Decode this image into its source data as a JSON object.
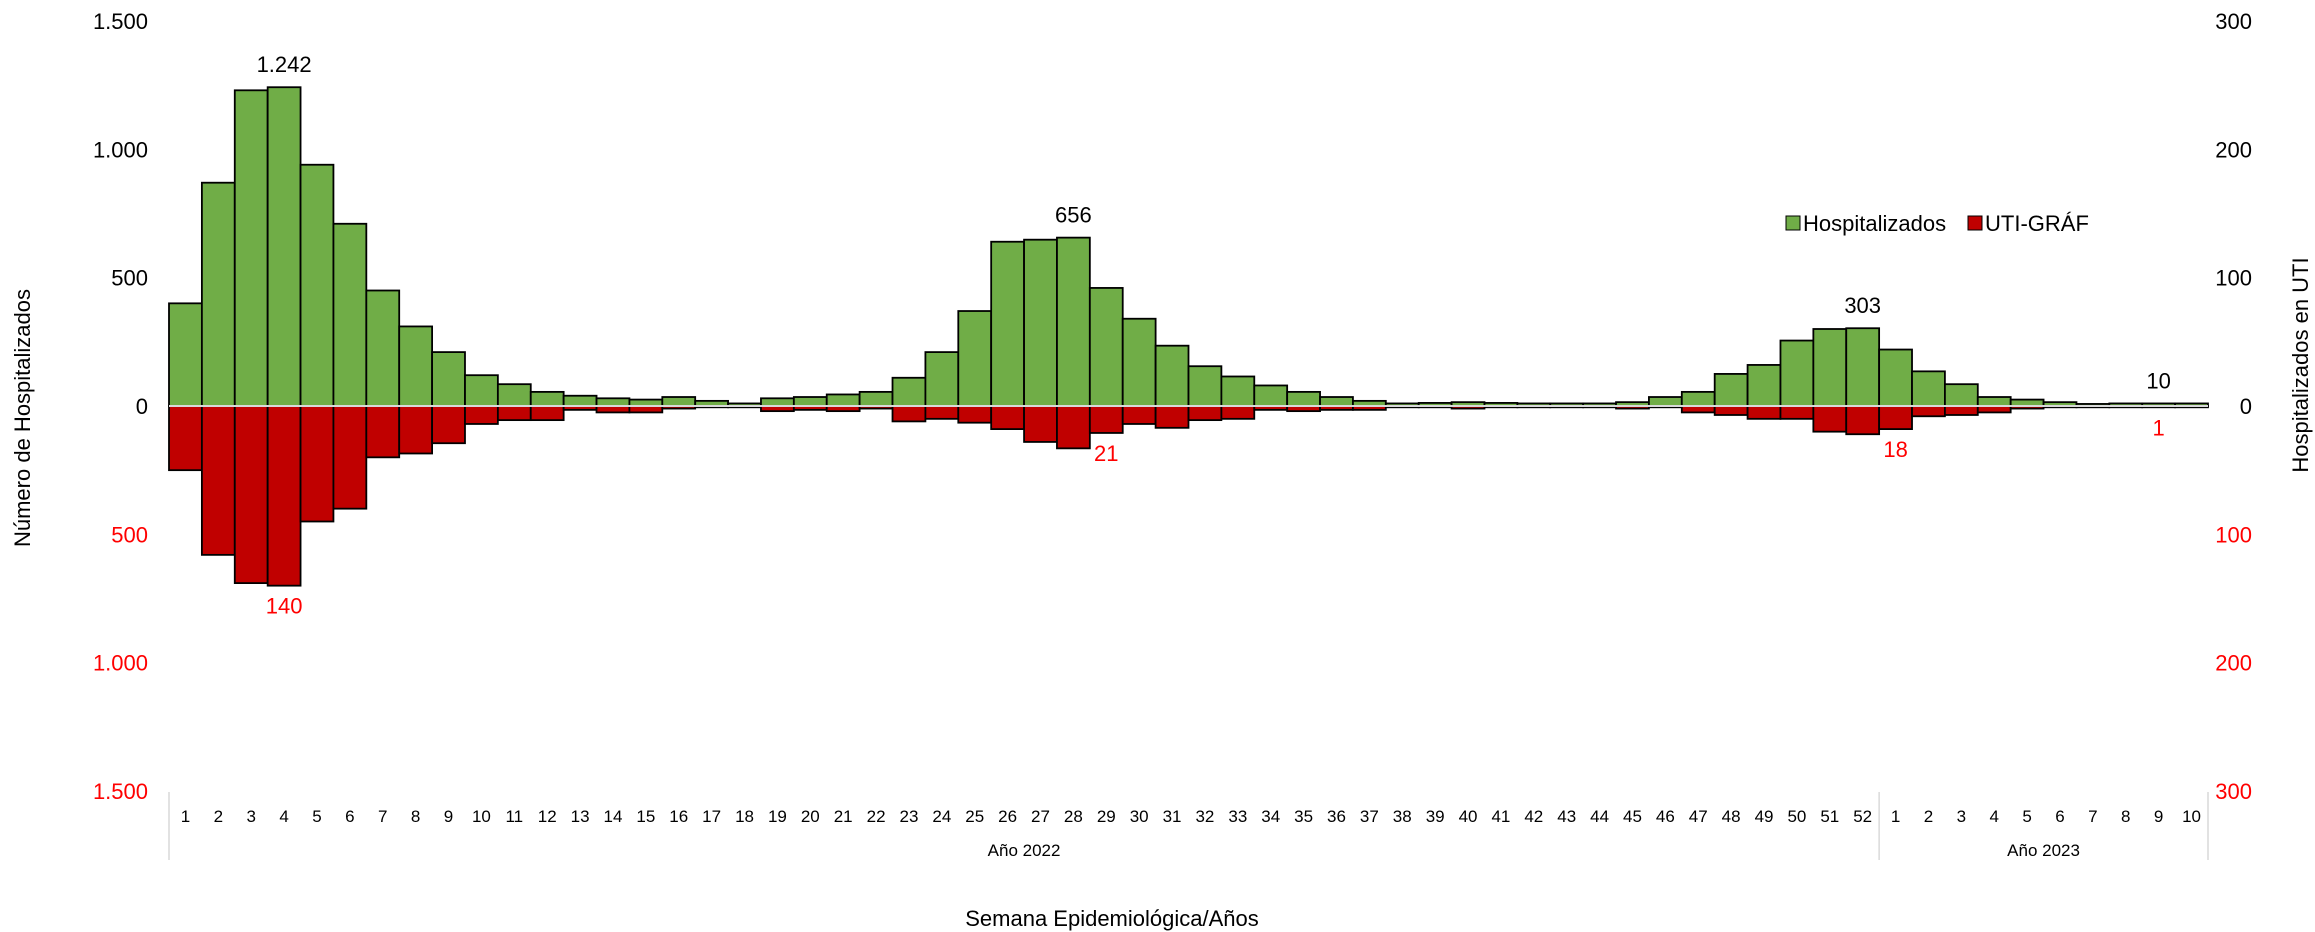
{
  "chart_data": {
    "type": "bar",
    "xlabel": "Semana Epidemiológica/Años",
    "ylabel_left": "Número de Hospitalizados",
    "ylabel_right": "Hospitalizados en UTI",
    "left_axis": {
      "ylim": [
        -1500,
        1500
      ],
      "ticks": [
        {
          "value": 1500,
          "label": "1.500"
        },
        {
          "value": 1000,
          "label": "1.000"
        },
        {
          "value": 500,
          "label": "500"
        },
        {
          "value": 0,
          "label": "0"
        },
        {
          "value": -500,
          "label": "500"
        },
        {
          "value": -1000,
          "label": "1.000"
        },
        {
          "value": -1500,
          "label": "1.500"
        }
      ]
    },
    "right_axis": {
      "ylim": [
        -300,
        300
      ],
      "ticks": [
        {
          "value": 300,
          "label": "300"
        },
        {
          "value": 200,
          "label": "200"
        },
        {
          "value": 100,
          "label": "100"
        },
        {
          "value": 0,
          "label": "0"
        },
        {
          "value": -100,
          "label": "100"
        },
        {
          "value": -200,
          "label": "200"
        },
        {
          "value": -300,
          "label": "300"
        }
      ]
    },
    "categories": [
      "1",
      "2",
      "3",
      "4",
      "5",
      "6",
      "7",
      "8",
      "9",
      "10",
      "11",
      "12",
      "13",
      "14",
      "15",
      "16",
      "17",
      "18",
      "19",
      "20",
      "21",
      "22",
      "23",
      "24",
      "25",
      "26",
      "27",
      "28",
      "29",
      "30",
      "31",
      "32",
      "33",
      "34",
      "35",
      "36",
      "37",
      "38",
      "39",
      "40",
      "41",
      "42",
      "43",
      "44",
      "45",
      "46",
      "47",
      "48",
      "49",
      "50",
      "51",
      "52",
      "1",
      "2",
      "3",
      "4",
      "5",
      "6",
      "7",
      "8",
      "9",
      "10"
    ],
    "groups": [
      {
        "label": "Año 2022",
        "count": 52
      },
      {
        "label": "Año 2023",
        "count": 10
      }
    ],
    "series": [
      {
        "name": "Hospitalizados",
        "color": "#70ad47",
        "axis": "left",
        "values": [
          400,
          870,
          1230,
          1242,
          940,
          710,
          450,
          310,
          210,
          120,
          85,
          55,
          40,
          30,
          25,
          35,
          20,
          10,
          30,
          35,
          45,
          55,
          110,
          210,
          370,
          640,
          648,
          656,
          460,
          340,
          235,
          155,
          115,
          80,
          55,
          35,
          20,
          10,
          12,
          15,
          12,
          10,
          10,
          10,
          15,
          35,
          55,
          125,
          160,
          255,
          300,
          303,
          220,
          135,
          85,
          35,
          25,
          15,
          8,
          10,
          10,
          10
        ],
        "value_labels": [
          {
            "index": 3,
            "label": "1.242"
          },
          {
            "index": 27,
            "label": "656"
          },
          {
            "index": 51,
            "label": "303"
          },
          {
            "index": 60,
            "label": "10"
          }
        ]
      },
      {
        "name": "UTI-GRÁF",
        "color": "#c00000",
        "axis": "right",
        "values": [
          50,
          116,
          138,
          140,
          90,
          80,
          40,
          37,
          29,
          14,
          11,
          11,
          3,
          5,
          5,
          2,
          1,
          1,
          4,
          3,
          4,
          2,
          12,
          10,
          13,
          18,
          28,
          33,
          21,
          14,
          17,
          11,
          10,
          3,
          4,
          3,
          3,
          1,
          1,
          2,
          1,
          1,
          1,
          1,
          2,
          1,
          5,
          7,
          10,
          10,
          20,
          22,
          18,
          8,
          7,
          5,
          2,
          1,
          1,
          1,
          1,
          1
        ],
        "value_labels": [
          {
            "index": 3,
            "label": "140"
          },
          {
            "index": 28,
            "label": "21"
          },
          {
            "index": 52,
            "label": "18"
          },
          {
            "index": 60,
            "label": "1"
          }
        ]
      }
    ],
    "legend": {
      "position": "top-right",
      "entries": [
        "Hospitalizados",
        "UTI-GRÁF"
      ]
    },
    "grid": false
  }
}
